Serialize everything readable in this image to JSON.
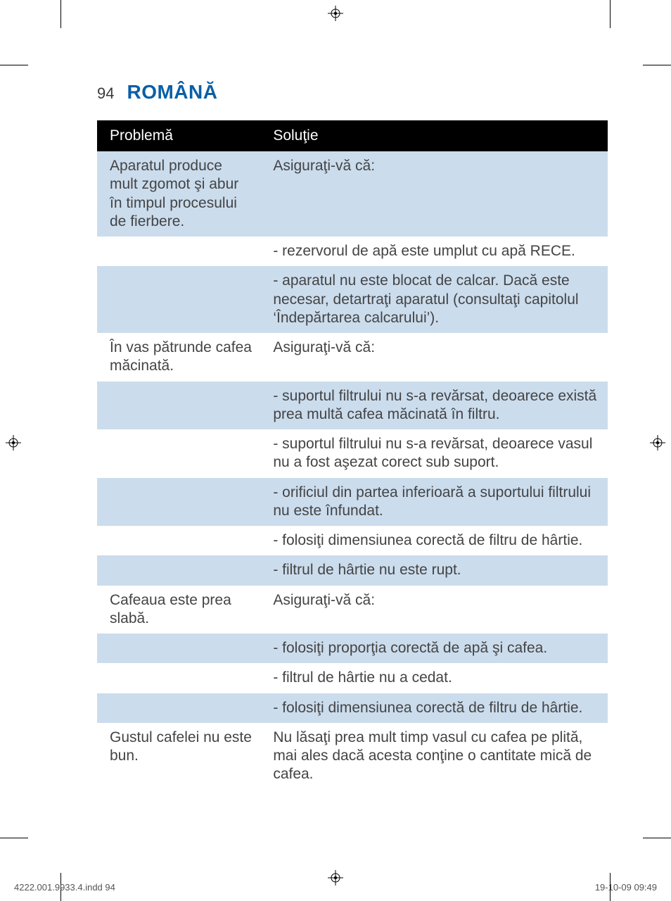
{
  "page_number": "94",
  "section_title": "ROMÂNĂ",
  "colors": {
    "title": "#0a5fa6",
    "header_bg": "#000000",
    "header_fg": "#ffffff",
    "row_alt_bg": "#cbdced",
    "row_bg": "#ffffff",
    "text": "#444444"
  },
  "table": {
    "columns": [
      "Problemă",
      "Soluţie"
    ],
    "col_widths_pct": [
      32,
      68
    ],
    "rows": [
      {
        "alt": true,
        "cells": [
          "Aparatul produce mult zgomot şi abur în timpul procesului de fierbere.",
          "Asiguraţi-vă că:"
        ]
      },
      {
        "alt": false,
        "cells": [
          "",
          "- rezervorul de apă este umplut cu apă RECE."
        ]
      },
      {
        "alt": true,
        "cells": [
          "",
          "- aparatul nu este blocat de calcar. Dacă este necesar, detartraţi aparatul (consultaţi capitolul ‘Îndepărtarea calcarului’)."
        ]
      },
      {
        "alt": false,
        "cells": [
          "În vas pătrunde cafea măcinată.",
          "Asiguraţi-vă că:"
        ]
      },
      {
        "alt": true,
        "cells": [
          "",
          "- suportul filtrului nu s-a revărsat, deoarece există prea multă cafea măcinată în filtru."
        ]
      },
      {
        "alt": false,
        "cells": [
          "",
          "- suportul filtrului nu s-a revărsat, deoarece vasul nu a fost aşezat corect sub suport."
        ]
      },
      {
        "alt": true,
        "cells": [
          "",
          "- orificiul din partea inferioară a suportului filtrului nu este înfundat."
        ]
      },
      {
        "alt": false,
        "cells": [
          "",
          "- folosiţi dimensiunea corectă de filtru de hârtie."
        ]
      },
      {
        "alt": true,
        "cells": [
          "",
          "- filtrul de hârtie nu este rupt."
        ]
      },
      {
        "alt": false,
        "cells": [
          "Cafeaua este prea slabă.",
          "Asiguraţi-vă că:"
        ]
      },
      {
        "alt": true,
        "cells": [
          "",
          "- folosiţi proporţia corectă de apă şi cafea."
        ]
      },
      {
        "alt": false,
        "cells": [
          "",
          "- filtrul de hârtie nu a cedat."
        ]
      },
      {
        "alt": true,
        "cells": [
          "",
          "- folosiţi dimensiunea corectă de filtru de hârtie."
        ]
      },
      {
        "alt": false,
        "cells": [
          "Gustul cafelei nu este bun.",
          "Nu lăsaţi prea mult timp vasul cu cafea pe plită, mai ales dacă acesta conţine o cantitate mică de cafea."
        ]
      }
    ]
  },
  "footer": {
    "left": "4222.001.9933.4.indd   94",
    "right": "19-10-09   09:49"
  }
}
